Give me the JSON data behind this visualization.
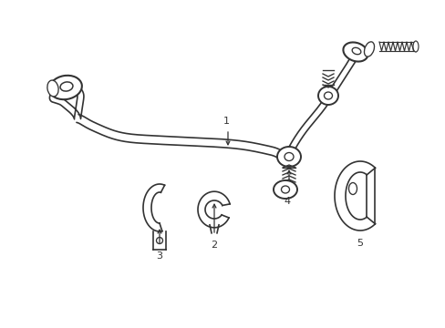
{
  "background_color": "#ffffff",
  "line_color": "#333333",
  "line_width": 1.2,
  "figsize": [
    4.89,
    3.6
  ],
  "dpi": 100
}
